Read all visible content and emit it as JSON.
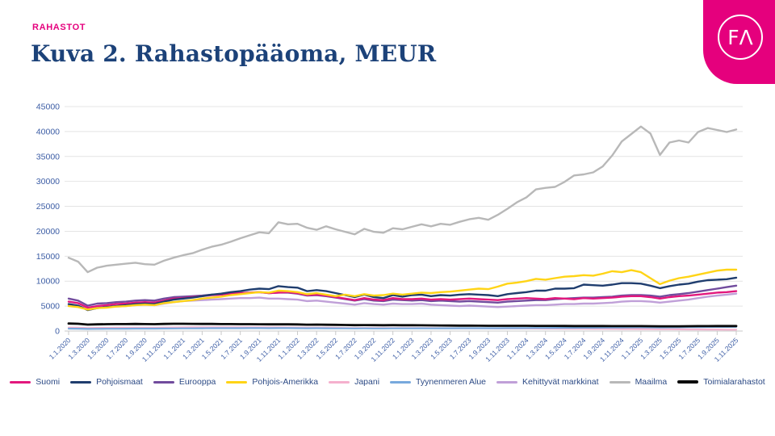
{
  "header": {
    "eyebrow": "RAHASTOT",
    "title": "Kuva 2. Rahastopääoma, MEUR",
    "logo_text": "FΛ"
  },
  "colors": {
    "accent_pink": "#e5007d",
    "title_blue": "#1c4279",
    "axis_label_blue": "#3c5da5",
    "gridline": "#e4e4e4",
    "axis_line": "#c9c9c9"
  },
  "chart_data": {
    "type": "line",
    "title": "Kuva 2. Rahastopääoma, MEUR",
    "ylabel": "",
    "xlabel": "",
    "ylim": [
      0,
      45000
    ],
    "ytick_step": 5000,
    "yticks": [
      0,
      5000,
      10000,
      15000,
      20000,
      25000,
      30000,
      35000,
      40000,
      45000
    ],
    "grid": "horizontal",
    "legend_position": "bottom",
    "x_labels": [
      "1.1.2020",
      "1.3.2020",
      "1.5.2020",
      "1.7.2020",
      "1.9.2020",
      "1.11.2020",
      "1.1.2021",
      "1.3.2021",
      "1.5.2021",
      "1.7.2021",
      "1.9.2021",
      "1.11.2021",
      "1.1.2022",
      "1.3.2022",
      "1.5.2022",
      "1.7.2022",
      "1.9.2022",
      "1.11.2022",
      "1.1.2023",
      "1.3.2023",
      "1.5.2023",
      "1.7.2023",
      "1.9.2023",
      "1.11.2023",
      "1.1.2024",
      "1.3.2024",
      "1.5.2024",
      "1.7.2024",
      "1.9.2024",
      "1.11.2024",
      "1.1.2025",
      "1.3.2025",
      "1.5.2025",
      "1.7.2025",
      "1.9.2025",
      "1.11.2025"
    ],
    "points_per_label": 2,
    "draw_order": [
      "Maailma",
      "Kehittyvät markkinat",
      "Japani",
      "Tyynenmeren Alue",
      "Eurooppa",
      "Suomi",
      "Pohjoismaat",
      "Pohjois-Amerikka",
      "Toimialarahastot"
    ],
    "series": [
      {
        "name": "Suomi",
        "color": "#e2187d",
        "width": 2.4,
        "values": [
          5900,
          5600,
          4700,
          5000,
          5200,
          5400,
          5500,
          5700,
          5800,
          5700,
          6100,
          6500,
          6600,
          6800,
          7000,
          7200,
          7300,
          7500,
          7600,
          7700,
          7800,
          7600,
          7700,
          7800,
          7600,
          7200,
          7300,
          7100,
          6800,
          6500,
          6200,
          6600,
          6300,
          6200,
          6600,
          6400,
          6400,
          6500,
          6300,
          6400,
          6300,
          6400,
          6500,
          6400,
          6300,
          6200,
          6400,
          6500,
          6600,
          6500,
          6400,
          6600,
          6500,
          6400,
          6600,
          6500,
          6600,
          6700,
          6900,
          7000,
          7000,
          6800,
          6500,
          6800,
          7000,
          7100,
          7300,
          7500,
          7700,
          7800,
          8000
        ]
      },
      {
        "name": "Pohjoismaat",
        "color": "#1f3d6e",
        "width": 2.4,
        "values": [
          5400,
          5100,
          4200,
          4600,
          4800,
          5000,
          5200,
          5400,
          5500,
          5400,
          5900,
          6300,
          6500,
          6700,
          7000,
          7300,
          7500,
          7800,
          8000,
          8300,
          8500,
          8400,
          9000,
          8800,
          8700,
          8000,
          8200,
          8000,
          7600,
          7200,
          6800,
          7300,
          6800,
          6600,
          7200,
          6900,
          7200,
          7300,
          7000,
          7200,
          7100,
          7300,
          7400,
          7300,
          7200,
          7000,
          7400,
          7600,
          7800,
          8100,
          8100,
          8500,
          8500,
          8600,
          9300,
          9200,
          9100,
          9300,
          9600,
          9600,
          9500,
          9100,
          8600,
          9000,
          9300,
          9500,
          9900,
          10200,
          10300,
          10400,
          10700
        ]
      },
      {
        "name": "Eurooppa",
        "color": "#714b9d",
        "width": 2.4,
        "values": [
          6500,
          6100,
          5100,
          5500,
          5600,
          5800,
          5900,
          6100,
          6200,
          6100,
          6500,
          6800,
          6900,
          7000,
          7100,
          7300,
          7400,
          7500,
          7600,
          7700,
          7800,
          7600,
          7700,
          7700,
          7500,
          7100,
          7200,
          7000,
          6700,
          6400,
          6100,
          6400,
          6100,
          6000,
          6300,
          6200,
          6100,
          6200,
          6000,
          6100,
          6000,
          5900,
          6000,
          5900,
          5800,
          5700,
          5900,
          6000,
          6100,
          6200,
          6200,
          6400,
          6500,
          6600,
          6700,
          6700,
          6800,
          6900,
          7100,
          7200,
          7200,
          7100,
          6900,
          7200,
          7400,
          7600,
          7900,
          8200,
          8500,
          8800,
          9100
        ]
      },
      {
        "name": "Pohjois-Amerikka",
        "color": "#ffd416",
        "width": 2.4,
        "values": [
          5000,
          4800,
          4300,
          4600,
          4700,
          4900,
          5000,
          5200,
          5300,
          5200,
          5600,
          5800,
          6000,
          6200,
          6500,
          6700,
          6900,
          7200,
          7400,
          7600,
          7800,
          7700,
          8100,
          8000,
          7800,
          7400,
          7600,
          7300,
          7000,
          7300,
          7000,
          7400,
          7100,
          7200,
          7500,
          7300,
          7500,
          7700,
          7600,
          7800,
          7900,
          8100,
          8300,
          8500,
          8400,
          8900,
          9500,
          9700,
          10000,
          10450,
          10300,
          10600,
          10900,
          11000,
          11200,
          11100,
          11500,
          12000,
          11800,
          12200,
          11800,
          10600,
          9400,
          10100,
          10600,
          10900,
          11300,
          11700,
          12100,
          12300,
          12300
        ]
      },
      {
        "name": "Japani",
        "color": "#f5b0cd",
        "width": 2.2,
        "values": [
          700,
          680,
          600,
          630,
          650,
          660,
          670,
          680,
          680,
          670,
          700,
          720,
          730,
          740,
          750,
          750,
          760,
          760,
          760,
          750,
          750,
          730,
          730,
          720,
          700,
          670,
          680,
          660,
          640,
          620,
          600,
          620,
          600,
          590,
          600,
          590,
          590,
          590,
          580,
          570,
          560,
          550,
          550,
          540,
          530,
          520,
          520,
          520,
          510,
          500,
          490,
          480,
          470,
          460,
          450,
          440,
          430,
          420,
          410,
          400,
          390,
          380,
          360,
          350,
          340,
          330,
          320,
          310,
          300,
          280,
          270
        ]
      },
      {
        "name": "Tyynenmeren Alue",
        "color": "#77a9dd",
        "width": 2.2,
        "values": [
          480,
          470,
          420,
          440,
          450,
          460,
          470,
          480,
          490,
          480,
          500,
          520,
          530,
          540,
          550,
          560,
          560,
          570,
          570,
          580,
          580,
          570,
          580,
          580,
          570,
          550,
          560,
          550,
          540,
          530,
          520,
          530,
          520,
          520,
          530,
          530,
          540,
          550,
          540,
          550,
          550,
          560,
          570,
          570,
          560,
          560,
          580,
          590,
          600,
          610,
          620,
          630,
          640,
          650,
          660,
          670,
          680,
          700,
          720,
          730,
          740,
          730,
          710,
          730,
          750,
          770,
          790,
          810,
          820,
          830,
          840
        ]
      },
      {
        "name": "Kehittyvät markkinat",
        "color": "#c0a0d8",
        "width": 2.4,
        "values": [
          5200,
          5000,
          4400,
          4700,
          4800,
          4900,
          5000,
          5200,
          5300,
          5200,
          5500,
          5800,
          6000,
          6100,
          6200,
          6300,
          6400,
          6500,
          6600,
          6600,
          6700,
          6500,
          6500,
          6400,
          6300,
          6000,
          6100,
          5900,
          5700,
          5500,
          5300,
          5600,
          5400,
          5300,
          5500,
          5400,
          5400,
          5500,
          5300,
          5200,
          5100,
          5000,
          5100,
          5000,
          4900,
          4800,
          4900,
          5000,
          5100,
          5200,
          5200,
          5300,
          5400,
          5400,
          5500,
          5500,
          5600,
          5700,
          5900,
          6000,
          6000,
          5900,
          5700,
          5900,
          6100,
          6300,
          6600,
          6900,
          7100,
          7300,
          7500
        ]
      },
      {
        "name": "Maailma",
        "color": "#b8b8b8",
        "width": 2.4,
        "values": [
          14700,
          13900,
          11800,
          12700,
          13100,
          13300,
          13500,
          13700,
          13400,
          13300,
          14100,
          14700,
          15200,
          15600,
          16300,
          16900,
          17300,
          17900,
          18600,
          19200,
          19800,
          19600,
          21800,
          21400,
          21500,
          20700,
          20300,
          21000,
          20400,
          19900,
          19400,
          20500,
          19900,
          19700,
          20600,
          20400,
          20900,
          21400,
          21000,
          21500,
          21300,
          21900,
          22400,
          22700,
          22300,
          23300,
          24500,
          25800,
          26800,
          28400,
          28700,
          28900,
          29900,
          31200,
          31400,
          31800,
          33000,
          35200,
          38000,
          39500,
          41000,
          39600,
          35300,
          37800,
          38200,
          37800,
          39900,
          40700,
          40300,
          39900,
          40400
        ]
      },
      {
        "name": "Toimialarahastot",
        "color": "#0a0a0a",
        "width": 2.8,
        "values": [
          1500,
          1450,
          1300,
          1350,
          1380,
          1400,
          1400,
          1420,
          1400,
          1380,
          1420,
          1450,
          1450,
          1440,
          1430,
          1420,
          1400,
          1390,
          1380,
          1370,
          1360,
          1340,
          1350,
          1340,
          1320,
          1280,
          1290,
          1270,
          1240,
          1210,
          1180,
          1200,
          1180,
          1160,
          1180,
          1170,
          1160,
          1150,
          1130,
          1120,
          1100,
          1090,
          1080,
          1070,
          1060,
          1050,
          1060,
          1060,
          1050,
          1040,
          1030,
          1030,
          1020,
          1010,
          1010,
          1000,
          1000,
          990,
          990,
          980,
          980,
          970,
          950,
          960,
          960,
          970,
          980,
          990,
          1000,
          1000,
          1010
        ]
      }
    ]
  }
}
